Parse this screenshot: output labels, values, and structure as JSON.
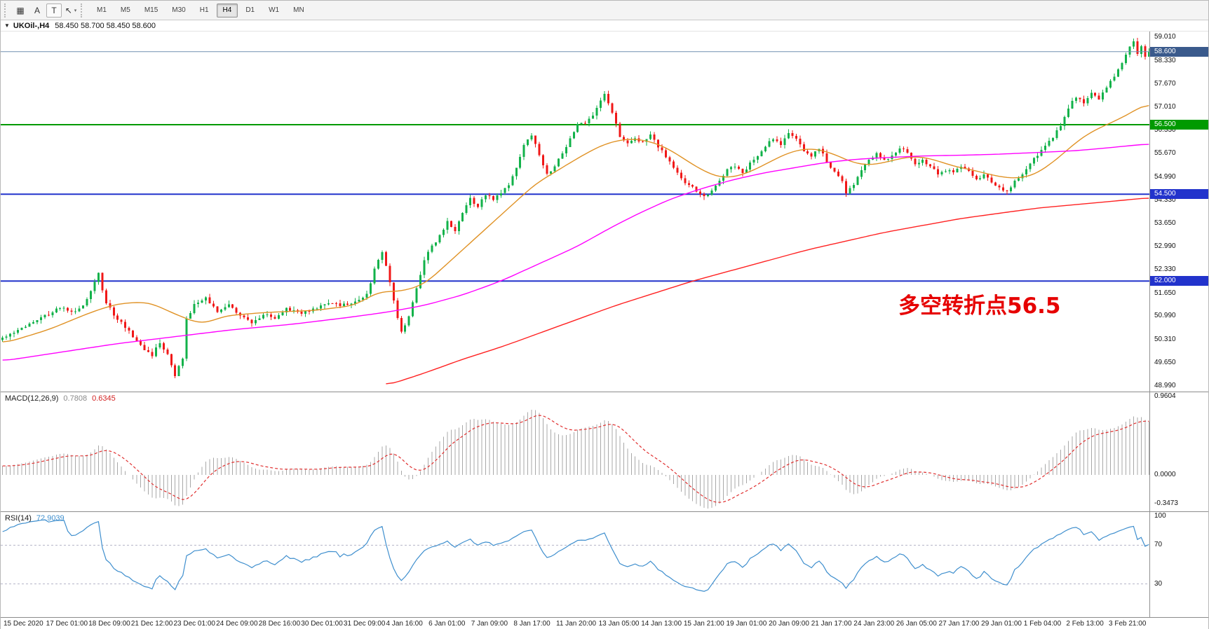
{
  "toolbar": {
    "tools": [
      {
        "name": "chart-windows-button",
        "glyph": "▦"
      },
      {
        "name": "text-tool-button",
        "glyph": "A"
      },
      {
        "name": "label-tool-button",
        "glyph": "T",
        "boxed": true
      },
      {
        "name": "cursor-tool-button",
        "glyph": "↖",
        "caret": "▾"
      }
    ],
    "timeframes": [
      "M1",
      "M5",
      "M15",
      "M30",
      "H1",
      "H4",
      "D1",
      "W1",
      "MN"
    ],
    "active_timeframe": "H4"
  },
  "symbol_header": {
    "collapse_icon": "▼",
    "title": "UKOil-,H4",
    "ohlc": "58.450 58.700 58.450 58.600"
  },
  "chart_data": {
    "type": "candlestick",
    "symbol": "UKOil-",
    "timeframe": "H4",
    "bars": 300,
    "price_range": {
      "min": 48.82,
      "max": 59.18
    },
    "colors": {
      "up": "#12b24a",
      "down": "#f01818"
    },
    "noise": {
      "seed": 7,
      "close_amp": 0.045,
      "wick_amp": 0.11
    },
    "prehistory": {
      "bars": 40,
      "start": 49.7
    },
    "last_bar": {
      "o": 58.45,
      "h": 58.7,
      "l": 58.45,
      "c": 58.6
    },
    "close_anchors": [
      [
        0,
        50.35
      ],
      [
        3,
        50.5
      ],
      [
        6,
        50.7
      ],
      [
        9,
        50.9
      ],
      [
        12,
        51.05
      ],
      [
        15,
        51.25
      ],
      [
        18,
        51.1
      ],
      [
        21,
        51.3
      ],
      [
        24,
        51.95
      ],
      [
        25,
        52.2
      ],
      [
        27,
        51.35
      ],
      [
        30,
        50.9
      ],
      [
        33,
        50.55
      ],
      [
        36,
        50.15
      ],
      [
        39,
        49.85
      ],
      [
        41,
        50.25
      ],
      [
        43,
        49.9
      ],
      [
        45,
        49.3
      ],
      [
        47,
        49.75
      ],
      [
        48,
        50.9
      ],
      [
        50,
        51.3
      ],
      [
        53,
        51.5
      ],
      [
        56,
        51.15
      ],
      [
        59,
        51.35
      ],
      [
        62,
        51.0
      ],
      [
        65,
        50.8
      ],
      [
        68,
        51.05
      ],
      [
        71,
        50.9
      ],
      [
        74,
        51.2
      ],
      [
        78,
        51.1
      ],
      [
        82,
        51.25
      ],
      [
        86,
        51.35
      ],
      [
        90,
        51.3
      ],
      [
        93,
        51.5
      ],
      [
        95,
        51.6
      ],
      [
        97,
        52.35
      ],
      [
        99,
        52.85
      ],
      [
        101,
        52.0
      ],
      [
        103,
        50.95
      ],
      [
        104,
        50.55
      ],
      [
        106,
        50.95
      ],
      [
        108,
        51.8
      ],
      [
        110,
        52.6
      ],
      [
        112,
        53.0
      ],
      [
        114,
        53.3
      ],
      [
        116,
        53.7
      ],
      [
        118,
        53.45
      ],
      [
        120,
        54.0
      ],
      [
        122,
        54.35
      ],
      [
        124,
        54.15
      ],
      [
        126,
        54.5
      ],
      [
        128,
        54.35
      ],
      [
        130,
        54.55
      ],
      [
        132,
        54.75
      ],
      [
        134,
        55.3
      ],
      [
        136,
        55.9
      ],
      [
        138,
        56.2
      ],
      [
        140,
        55.65
      ],
      [
        142,
        55.05
      ],
      [
        144,
        55.3
      ],
      [
        146,
        55.7
      ],
      [
        148,
        56.1
      ],
      [
        150,
        56.5
      ],
      [
        152,
        56.55
      ],
      [
        154,
        56.8
      ],
      [
        156,
        57.2
      ],
      [
        157,
        57.4
      ],
      [
        159,
        56.85
      ],
      [
        161,
        56.15
      ],
      [
        163,
        55.95
      ],
      [
        165,
        56.1
      ],
      [
        167,
        56.0
      ],
      [
        169,
        56.2
      ],
      [
        171,
        55.85
      ],
      [
        173,
        55.6
      ],
      [
        175,
        55.25
      ],
      [
        177,
        54.95
      ],
      [
        179,
        54.75
      ],
      [
        181,
        54.6
      ],
      [
        183,
        54.45
      ],
      [
        185,
        54.6
      ],
      [
        187,
        54.9
      ],
      [
        189,
        55.2
      ],
      [
        191,
        55.3
      ],
      [
        193,
        55.1
      ],
      [
        195,
        55.4
      ],
      [
        197,
        55.6
      ],
      [
        199,
        55.9
      ],
      [
        201,
        56.1
      ],
      [
        203,
        55.95
      ],
      [
        205,
        56.3
      ],
      [
        207,
        56.1
      ],
      [
        209,
        55.75
      ],
      [
        211,
        55.6
      ],
      [
        213,
        55.85
      ],
      [
        215,
        55.45
      ],
      [
        217,
        55.15
      ],
      [
        219,
        54.85
      ],
      [
        220,
        54.5
      ],
      [
        222,
        54.8
      ],
      [
        224,
        55.2
      ],
      [
        226,
        55.5
      ],
      [
        228,
        55.65
      ],
      [
        230,
        55.5
      ],
      [
        232,
        55.6
      ],
      [
        234,
        55.85
      ],
      [
        236,
        55.65
      ],
      [
        238,
        55.4
      ],
      [
        240,
        55.5
      ],
      [
        242,
        55.3
      ],
      [
        244,
        55.05
      ],
      [
        246,
        55.2
      ],
      [
        248,
        55.1
      ],
      [
        250,
        55.3
      ],
      [
        252,
        55.15
      ],
      [
        254,
        54.9
      ],
      [
        256,
        55.05
      ],
      [
        258,
        54.85
      ],
      [
        260,
        54.7
      ],
      [
        262,
        54.55
      ],
      [
        264,
        54.9
      ],
      [
        266,
        55.1
      ],
      [
        268,
        55.4
      ],
      [
        270,
        55.65
      ],
      [
        272,
        55.9
      ],
      [
        274,
        56.1
      ],
      [
        276,
        56.5
      ],
      [
        278,
        57.0
      ],
      [
        280,
        57.3
      ],
      [
        282,
        57.1
      ],
      [
        284,
        57.4
      ],
      [
        286,
        57.25
      ],
      [
        288,
        57.55
      ],
      [
        290,
        57.9
      ],
      [
        292,
        58.3
      ],
      [
        294,
        58.7
      ],
      [
        295,
        58.9
      ],
      [
        296,
        58.55
      ],
      [
        297,
        58.75
      ],
      [
        298,
        58.45
      ],
      [
        299,
        58.6
      ]
    ],
    "ma_lines": [
      {
        "name": "ma-fast",
        "color": "#e09225",
        "anchors": [
          [
            0,
            50.2
          ],
          [
            12,
            50.6
          ],
          [
            23,
            51.1
          ],
          [
            30,
            51.35
          ],
          [
            38,
            51.4
          ],
          [
            46,
            51.0
          ],
          [
            52,
            50.75
          ],
          [
            58,
            51.0
          ],
          [
            69,
            51.1
          ],
          [
            81,
            51.15
          ],
          [
            92,
            51.3
          ],
          [
            98,
            51.7
          ],
          [
            104,
            51.7
          ],
          [
            110,
            51.9
          ],
          [
            115,
            52.4
          ],
          [
            121,
            53.0
          ],
          [
            127,
            53.6
          ],
          [
            133,
            54.2
          ],
          [
            139,
            54.8
          ],
          [
            145,
            55.2
          ],
          [
            151,
            55.6
          ],
          [
            157,
            55.95
          ],
          [
            163,
            56.1
          ],
          [
            168,
            56.05
          ],
          [
            173,
            55.85
          ],
          [
            178,
            55.5
          ],
          [
            183,
            55.15
          ],
          [
            188,
            54.95
          ],
          [
            193,
            55.05
          ],
          [
            198,
            55.3
          ],
          [
            203,
            55.6
          ],
          [
            208,
            55.8
          ],
          [
            213,
            55.8
          ],
          [
            218,
            55.6
          ],
          [
            223,
            55.35
          ],
          [
            228,
            55.35
          ],
          [
            233,
            55.5
          ],
          [
            238,
            55.6
          ],
          [
            243,
            55.5
          ],
          [
            248,
            55.3
          ],
          [
            253,
            55.2
          ],
          [
            258,
            55.05
          ],
          [
            263,
            54.95
          ],
          [
            268,
            55.0
          ],
          [
            272,
            55.25
          ],
          [
            276,
            55.6
          ],
          [
            280,
            56.0
          ],
          [
            284,
            56.3
          ],
          [
            288,
            56.5
          ],
          [
            292,
            56.7
          ],
          [
            296,
            56.95
          ],
          [
            299,
            57.15
          ]
        ]
      },
      {
        "name": "ma-mid",
        "color": "#ff00ff",
        "anchors": [
          [
            0,
            49.7
          ],
          [
            15,
            49.95
          ],
          [
            30,
            50.2
          ],
          [
            45,
            50.4
          ],
          [
            60,
            50.6
          ],
          [
            75,
            50.75
          ],
          [
            90,
            50.95
          ],
          [
            100,
            51.1
          ],
          [
            110,
            51.3
          ],
          [
            120,
            51.6
          ],
          [
            130,
            52.0
          ],
          [
            140,
            52.5
          ],
          [
            150,
            53.0
          ],
          [
            158,
            53.5
          ],
          [
            166,
            53.95
          ],
          [
            174,
            54.35
          ],
          [
            182,
            54.65
          ],
          [
            190,
            54.9
          ],
          [
            198,
            55.1
          ],
          [
            206,
            55.25
          ],
          [
            214,
            55.4
          ],
          [
            222,
            55.5
          ],
          [
            230,
            55.55
          ],
          [
            240,
            55.6
          ],
          [
            250,
            55.62
          ],
          [
            260,
            55.65
          ],
          [
            270,
            55.7
          ],
          [
            280,
            55.75
          ],
          [
            290,
            55.85
          ],
          [
            299,
            55.95
          ]
        ]
      },
      {
        "name": "ma-slow",
        "color": "#ff2222",
        "anchors": [
          [
            100,
            48.99
          ],
          [
            110,
            49.35
          ],
          [
            120,
            49.75
          ],
          [
            130,
            50.1
          ],
          [
            140,
            50.5
          ],
          [
            150,
            50.9
          ],
          [
            160,
            51.3
          ],
          [
            170,
            51.65
          ],
          [
            180,
            52.0
          ],
          [
            190,
            52.3
          ],
          [
            200,
            52.6
          ],
          [
            210,
            52.9
          ],
          [
            220,
            53.15
          ],
          [
            230,
            53.4
          ],
          [
            240,
            53.6
          ],
          [
            250,
            53.8
          ],
          [
            260,
            53.95
          ],
          [
            270,
            54.1
          ],
          [
            280,
            54.2
          ],
          [
            290,
            54.3
          ],
          [
            299,
            54.4
          ]
        ]
      }
    ],
    "hlines": [
      {
        "price": 58.6,
        "color": "#7090b0",
        "width": 1,
        "top": true,
        "badge": "58.600",
        "badge_color": "#3a5a8c"
      },
      {
        "price": 56.5,
        "color": "#009a00",
        "width": 2,
        "badge": "56.500",
        "badge_color": "#009a00"
      },
      {
        "price": 54.5,
        "color": "#2233cc",
        "width": 2,
        "badge": "54.500",
        "badge_color": "#2233cc"
      },
      {
        "price": 52.0,
        "color": "#2233cc",
        "width": 2,
        "badge": "52.000",
        "badge_color": "#2233cc"
      }
    ],
    "price_ticks": [
      "59.010",
      "58.330",
      "57.670",
      "57.010",
      "56.330",
      "55.670",
      "54.990",
      "54.330",
      "53.650",
      "52.990",
      "52.330",
      "51.650",
      "50.990",
      "50.310",
      "49.650",
      "48.990"
    ],
    "annotation": {
      "text": "多空转折点56.5",
      "color": "#e60000"
    },
    "macd": {
      "label": "MACD(12,26,9)",
      "value_main": "0.7808",
      "value_signal": "0.6345",
      "fast": 12,
      "slow": 26,
      "signal": 9,
      "axis_ticks": [
        "0.9604",
        "0.0000",
        "-0.3473"
      ],
      "range": {
        "min": -0.44,
        "max": 1.0
      },
      "hist_color": "#a8a8a8",
      "signal_color": "#e03030"
    },
    "rsi": {
      "label": "RSI(14)",
      "value": "72.9039",
      "period": 14,
      "levels": [
        70,
        30
      ],
      "axis_ticks": [
        "100",
        "70",
        "30"
      ],
      "range": {
        "min": 0,
        "max": 100
      },
      "line_color": "#3f8fce",
      "level_color": "#b4b4c8"
    },
    "time_labels": [
      "15 Dec 2020",
      "17 Dec 01:00",
      "18 Dec 09:00",
      "21 Dec 12:00",
      "23 Dec 01:00",
      "24 Dec 09:00",
      "28 Dec 16:00",
      "30 Dec 01:00",
      "31 Dec 09:00",
      "4 Jan 16:00",
      "6 Jan 01:00",
      "7 Jan 09:00",
      "8 Jan 17:00",
      "11 Jan 20:00",
      "13 Jan 05:00",
      "14 Jan 13:00",
      "15 Jan 21:00",
      "19 Jan 01:00",
      "20 Jan 09:00",
      "21 Jan 17:00",
      "24 Jan 23:00",
      "26 Jan 05:00",
      "27 Jan 17:00",
      "29 Jan 01:00",
      "1 Feb 04:00",
      "2 Feb 13:00",
      "3 Feb 21:00"
    ]
  }
}
